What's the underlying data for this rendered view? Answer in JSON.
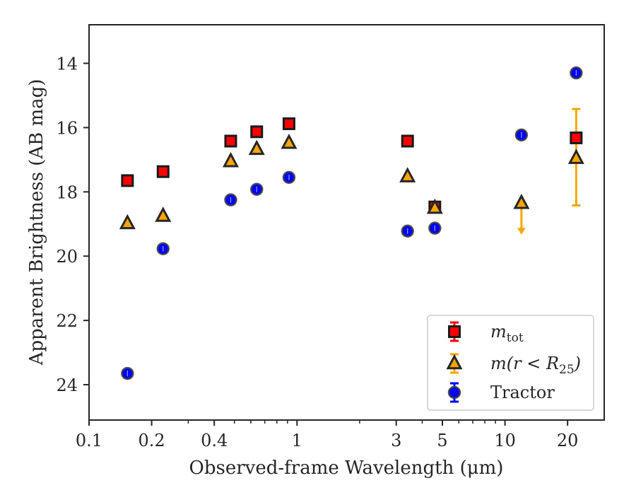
{
  "chart_data": {
    "type": "scatter",
    "xlabel": "Observed-frame Wavelength (μm)",
    "ylabel": "Apparent Brightness (AB mag)",
    "x_scale": "log",
    "xlim": [
      0.1,
      30
    ],
    "ylim": [
      25.1,
      12.8
    ],
    "y_inverted": true,
    "x_ticks": [
      {
        "value": 0.1,
        "label": "0.1"
      },
      {
        "value": 0.2,
        "label": "0.2"
      },
      {
        "value": 0.4,
        "label": "0.4"
      },
      {
        "value": 1,
        "label": "1"
      },
      {
        "value": 3,
        "label": "3"
      },
      {
        "value": 5,
        "label": "5"
      },
      {
        "value": 10,
        "label": "10"
      },
      {
        "value": 20,
        "label": "20"
      }
    ],
    "y_ticks": [
      {
        "value": 14,
        "label": "14"
      },
      {
        "value": 16,
        "label": "16"
      },
      {
        "value": 18,
        "label": "18"
      },
      {
        "value": 20,
        "label": "20"
      },
      {
        "value": 22,
        "label": "22"
      },
      {
        "value": 24,
        "label": "24"
      }
    ],
    "grid": false,
    "legend_position": "bottom-right",
    "series": [
      {
        "name": "m_tot",
        "legend_main": "m",
        "legend_sub": "tot",
        "marker": "square",
        "color": "#ff0000",
        "edge_color": "#1a1a1a",
        "points": [
          {
            "x": 0.153,
            "y": 17.65
          },
          {
            "x": 0.227,
            "y": 17.37
          },
          {
            "x": 0.48,
            "y": 16.42
          },
          {
            "x": 0.64,
            "y": 16.13
          },
          {
            "x": 0.915,
            "y": 15.88
          },
          {
            "x": 3.4,
            "y": 16.42
          },
          {
            "x": 4.6,
            "y": 18.47
          },
          {
            "x": 22.0,
            "y": 16.32,
            "err": [
              0.9,
              2.1
            ],
            "err_color": "#ffa500"
          }
        ]
      },
      {
        "name": "m(r < R25)",
        "legend_main": "m(r < R",
        "legend_sub": "25",
        "legend_tail": ")",
        "marker": "triangle",
        "color": "#ffa500",
        "edge_color": "#262626",
        "points": [
          {
            "x": 0.153,
            "y": 18.98
          },
          {
            "x": 0.227,
            "y": 18.75
          },
          {
            "x": 0.48,
            "y": 17.05
          },
          {
            "x": 0.64,
            "y": 16.67
          },
          {
            "x": 0.915,
            "y": 16.48
          },
          {
            "x": 3.4,
            "y": 17.52
          },
          {
            "x": 4.6,
            "y": 18.5
          },
          {
            "x": 12.0,
            "y": 18.35,
            "upper_limit": true
          },
          {
            "x": 22.0,
            "y": 16.95
          }
        ]
      },
      {
        "name": "Tractor",
        "legend_main": "Tractor",
        "marker": "circle",
        "color": "#0000ff",
        "edge_color": "#404040",
        "points": [
          {
            "x": 0.153,
            "y": 23.65
          },
          {
            "x": 0.227,
            "y": 19.77
          },
          {
            "x": 0.48,
            "y": 18.25
          },
          {
            "x": 0.64,
            "y": 17.92
          },
          {
            "x": 0.915,
            "y": 17.55
          },
          {
            "x": 3.4,
            "y": 19.22
          },
          {
            "x": 4.6,
            "y": 19.13
          },
          {
            "x": 12.0,
            "y": 16.23
          },
          {
            "x": 22.0,
            "y": 14.3
          }
        ]
      }
    ]
  }
}
